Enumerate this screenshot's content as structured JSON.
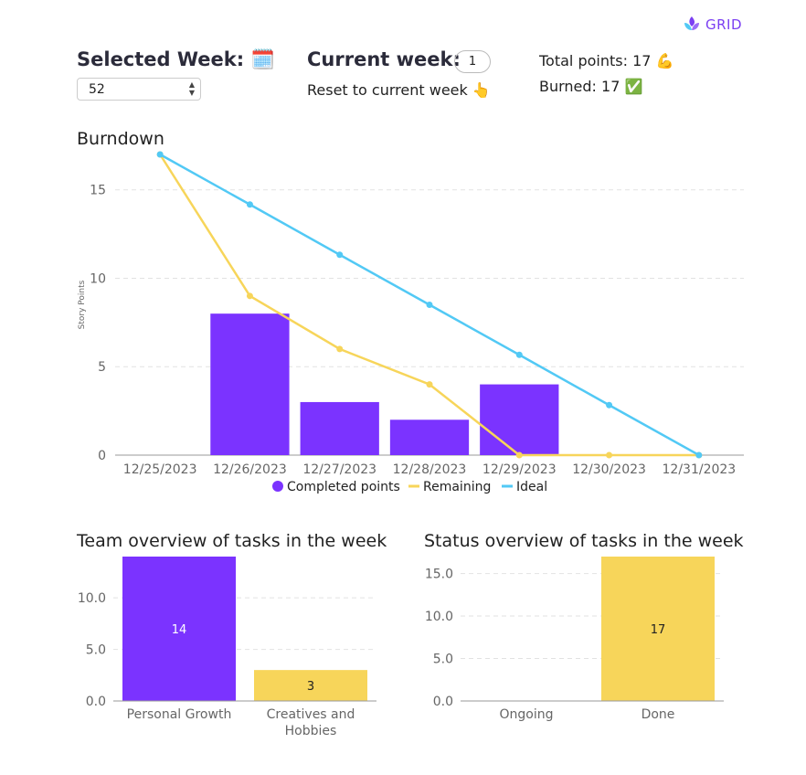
{
  "header": {
    "logo_text": "GRID",
    "selected_week_label": "Selected Week:",
    "selected_week_icon": "🗓️",
    "selected_week_value": "52",
    "current_week_label": "Current week:",
    "current_week_value": "1",
    "reset_label": "Reset to current week 👆",
    "total_points_label": "Total points:  17 💪",
    "burned_label": "Burned: 17 ✅"
  },
  "colors": {
    "purple": "#7b33ff",
    "yellow": "#f7d55a",
    "blue": "#52c9f5",
    "grid": "#e2e2e2",
    "axis": "#666666"
  },
  "chart_data": [
    {
      "type": "bar+line",
      "title": "Burndown",
      "ylabel": "Story Points",
      "ylim": [
        0,
        17
      ],
      "yticks": [
        "0",
        "5",
        "10",
        "15"
      ],
      "categories": [
        "12/25/2023",
        "12/26/2023",
        "12/27/2023",
        "12/28/2023",
        "12/29/2023",
        "12/30/2023",
        "12/31/2023"
      ],
      "series": [
        {
          "name": "Completed points",
          "type": "bar",
          "values": [
            0,
            8,
            3,
            2,
            4,
            0,
            0
          ]
        },
        {
          "name": "Remaining",
          "type": "line",
          "values": [
            17,
            9,
            6,
            4,
            0,
            0,
            0
          ]
        },
        {
          "name": "Ideal",
          "type": "line",
          "values": [
            17,
            14.17,
            11.33,
            8.5,
            5.67,
            2.83,
            0
          ]
        }
      ],
      "legend": [
        "Completed points",
        "Remaining",
        "Ideal"
      ]
    },
    {
      "type": "bar",
      "title": "Team overview of tasks in the week",
      "categories": [
        "Personal Growth",
        "Creatives and Hobbies"
      ],
      "values": [
        14,
        3
      ],
      "ylim": [
        0,
        14
      ],
      "yticks": [
        "0.0",
        "5.0",
        "10.0"
      ]
    },
    {
      "type": "bar",
      "title": "Status overview of tasks in the week",
      "categories": [
        "Ongoing",
        "Done"
      ],
      "values": [
        0,
        17
      ],
      "ylim": [
        0,
        17
      ],
      "yticks": [
        "0.0",
        "5.0",
        "10.0",
        "15.0"
      ]
    }
  ]
}
